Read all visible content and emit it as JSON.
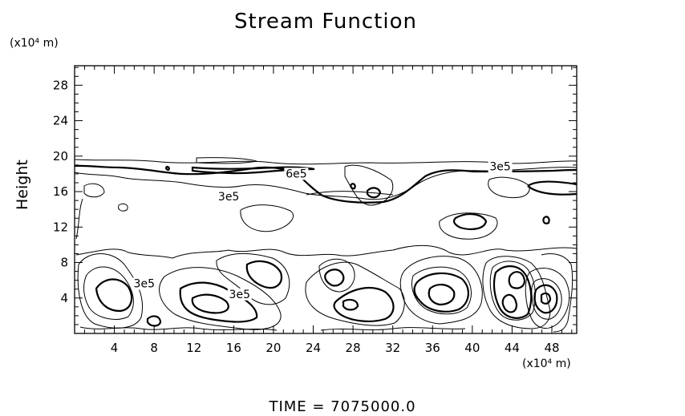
{
  "chart_data": {
    "type": "contour",
    "title": "Stream Function",
    "ylabel": "Height",
    "y_unit_label": "(x10⁴ m)",
    "x_unit_label": "(x10⁴ m)",
    "footer": "TIME = 7075000.0",
    "xlim": [
      0,
      50.5
    ],
    "ylim": [
      0,
      30.2
    ],
    "x_ticks": [
      4,
      8,
      12,
      16,
      20,
      24,
      28,
      32,
      36,
      40,
      44,
      48
    ],
    "y_ticks": [
      4,
      8,
      12,
      16,
      20,
      24,
      28
    ],
    "contour_labels": [
      {
        "text": "6e5",
        "x": 22.3,
        "y": 17.6
      },
      {
        "text": "3e5",
        "x": 15.5,
        "y": 15.0
      },
      {
        "text": "3e5",
        "x": 42.8,
        "y": 18.4
      },
      {
        "text": "3e5",
        "x": 16.6,
        "y": 4.0
      },
      {
        "text": "3e5",
        "x": 7.0,
        "y": 5.2
      }
    ],
    "line_color": "#000000"
  }
}
